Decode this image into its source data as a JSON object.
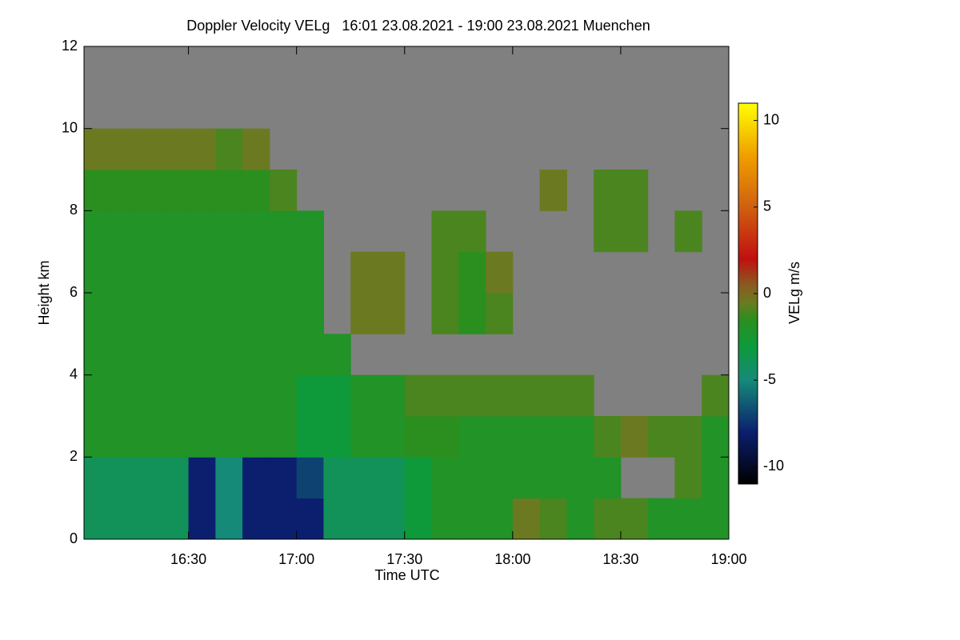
{
  "chart_data": {
    "type": "heatmap",
    "title": "Doppler Velocity VELg   16:01 23.08.2021 - 19:00 23.08.2021 Muenchen",
    "x_label": "Time UTC",
    "y_label": "Height km",
    "colorbar_label": "VELg m/s",
    "xlim": [
      16.0167,
      19.0
    ],
    "xticks": [
      {
        "value": 16.5,
        "label": "16:30"
      },
      {
        "value": 17.0,
        "label": "17:00"
      },
      {
        "value": 17.5,
        "label": "17:30"
      },
      {
        "value": 18.0,
        "label": "18:00"
      },
      {
        "value": 18.5,
        "label": "18:30"
      },
      {
        "value": 19.0,
        "label": "19:00"
      }
    ],
    "ylim": [
      0,
      12
    ],
    "yticks": [
      0,
      2,
      4,
      6,
      8,
      10,
      12
    ],
    "zlim": [
      -11,
      11
    ],
    "zticks": [
      -10,
      -5,
      0,
      5,
      10
    ],
    "background": "#808080",
    "colorscale": [
      [
        -11,
        "#000000"
      ],
      [
        -8,
        "#0b1f6e"
      ],
      [
        -5,
        "#158a78"
      ],
      [
        -3,
        "#0e9a3a"
      ],
      [
        -1.5,
        "#2a8f1e"
      ],
      [
        -0.5,
        "#6b7a20"
      ],
      [
        0.5,
        "#8a5a20"
      ],
      [
        2,
        "#c01010"
      ],
      [
        5,
        "#d06010"
      ],
      [
        8,
        "#f0a000"
      ],
      [
        11,
        "#ffff00"
      ]
    ],
    "x": [
      16.0625,
      16.1875,
      16.3125,
      16.4375,
      16.5625,
      16.6875,
      16.8125,
      16.9375,
      17.0625,
      17.1875,
      17.3125,
      17.4375,
      17.5625,
      17.6875,
      17.8125,
      17.9375,
      18.0625,
      18.1875,
      18.3125,
      18.4375,
      18.5625,
      18.6875,
      18.8125,
      18.9375
    ],
    "y": [
      0.5,
      1.5,
      2.5,
      3.5,
      4.5,
      5.5,
      6.5,
      7.5,
      8.5,
      9.5,
      10.5,
      11.5
    ],
    "z": [
      [
        -4,
        -4,
        -4,
        -4,
        -8,
        -5,
        -8,
        -8,
        -8,
        -4,
        -4,
        -4,
        -3,
        -2,
        -2,
        -2,
        -0.5,
        -1,
        -2,
        -1,
        -1,
        -2,
        -2,
        -2
      ],
      [
        -4,
        -4,
        -4,
        -4,
        -8,
        -5,
        -8,
        -8,
        -7,
        -4,
        -4,
        -4,
        -3,
        -2,
        -2,
        -2,
        -2,
        -2,
        -2,
        -2,
        null,
        null,
        -1,
        -2
      ],
      [
        -2,
        -2,
        -2,
        -2,
        -2,
        -2,
        -2,
        -2,
        -3,
        -3,
        -2,
        -2,
        -1.5,
        -1.5,
        -2,
        -2,
        -2,
        -2,
        -2,
        -1,
        -0.5,
        -1,
        -1,
        -2
      ],
      [
        -2,
        -2,
        -2,
        -2,
        -2,
        -2,
        -2,
        -2,
        -3,
        -3,
        -2,
        -2,
        -1,
        -1,
        -1,
        -1,
        -1,
        -1,
        -1,
        null,
        null,
        null,
        null,
        -1
      ],
      [
        -2,
        -2,
        -2,
        -2,
        -2,
        -2,
        -2,
        -2,
        -2,
        -2,
        null,
        null,
        null,
        null,
        null,
        null,
        null,
        null,
        null,
        null,
        null,
        null,
        null,
        null
      ],
      [
        -2,
        -2,
        -2,
        -2,
        -2,
        -2,
        -2,
        -2,
        -2,
        null,
        -0.5,
        -0.5,
        null,
        -1,
        -1.5,
        -1,
        null,
        null,
        null,
        null,
        null,
        null,
        null,
        null
      ],
      [
        -2,
        -2,
        -2,
        -2,
        -2,
        -2,
        -2,
        -2,
        -2,
        null,
        -0.5,
        -0.5,
        null,
        -1,
        -1.5,
        -0.5,
        null,
        null,
        null,
        null,
        null,
        null,
        null,
        null
      ],
      [
        -2,
        -2,
        -2,
        -2,
        -2,
        -2,
        -2,
        -2,
        -2,
        null,
        null,
        null,
        null,
        -1,
        -1,
        null,
        null,
        null,
        null,
        -1,
        -1,
        null,
        -1,
        null
      ],
      [
        -1.5,
        -1.5,
        -1.5,
        -1.5,
        -1.5,
        -1.5,
        -1.5,
        -1,
        null,
        null,
        null,
        null,
        null,
        null,
        null,
        null,
        null,
        -0.5,
        null,
        -1,
        -1,
        null,
        null,
        null
      ],
      [
        -0.5,
        -0.5,
        -0.5,
        -0.5,
        -0.5,
        -1,
        -0.5,
        null,
        null,
        null,
        null,
        null,
        null,
        null,
        null,
        null,
        null,
        null,
        null,
        null,
        null,
        null,
        null,
        null
      ],
      [
        null,
        null,
        null,
        null,
        null,
        null,
        null,
        null,
        null,
        null,
        null,
        null,
        null,
        null,
        null,
        null,
        null,
        null,
        null,
        null,
        null,
        null,
        null,
        null
      ],
      [
        null,
        null,
        null,
        null,
        null,
        null,
        null,
        null,
        null,
        null,
        null,
        null,
        null,
        null,
        null,
        null,
        null,
        null,
        null,
        null,
        null,
        null,
        null,
        null
      ]
    ]
  }
}
